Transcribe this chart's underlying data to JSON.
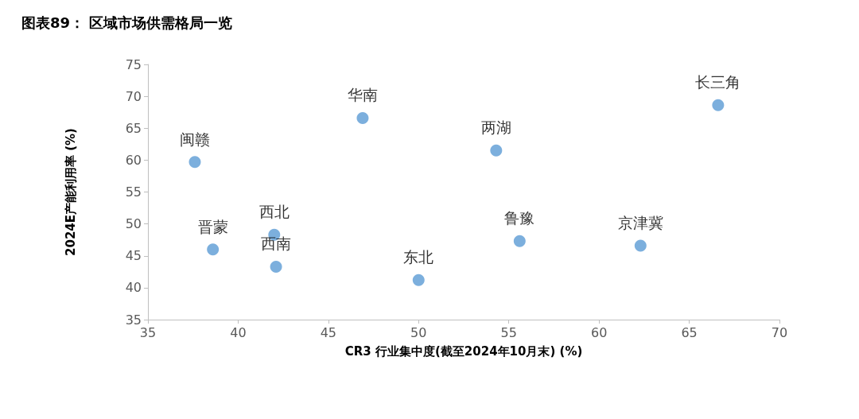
{
  "chart_data": {
    "type": "scatter",
    "title": "图表89： 区域市场供需格局一览",
    "xlabel": "CR3 行业集中度(截至2024年10月末) (%)",
    "ylabel": "2024E产能利用率 (%)",
    "series": [
      {
        "color": "#5b9bd5",
        "x": [
          37.6,
          46.9,
          54.3,
          66.6,
          42.0,
          38.6,
          42.1,
          50.0,
          55.6,
          62.3
        ],
        "values": [
          59.7,
          66.6,
          61.5,
          68.6,
          48.3,
          46.0,
          43.3,
          41.2,
          47.3,
          46.6
        ]
      }
    ],
    "annotations": [
      {
        "text": "闽赣",
        "x": 37.6,
        "y": 59.7
      },
      {
        "text": "华南",
        "x": 46.9,
        "y": 66.6
      },
      {
        "text": "两湖",
        "x": 54.3,
        "y": 61.5
      },
      {
        "text": "长三角",
        "x": 66.6,
        "y": 68.6
      },
      {
        "text": "西北",
        "x": 42.0,
        "y": 48.3
      },
      {
        "text": "晋蒙",
        "x": 38.6,
        "y": 46.0
      },
      {
        "text": "西南",
        "x": 42.1,
        "y": 43.3
      },
      {
        "text": "东北",
        "x": 50.0,
        "y": 41.2
      },
      {
        "text": "鲁豫",
        "x": 55.6,
        "y": 47.3
      },
      {
        "text": "京津冀",
        "x": 62.3,
        "y": 46.6
      }
    ],
    "xlim": [
      35,
      70
    ],
    "xticks": [
      35,
      40,
      45,
      50,
      55,
      60,
      65,
      70
    ],
    "ylim": [
      35,
      75
    ],
    "yticks": [
      35,
      40,
      45,
      50,
      55,
      60,
      65,
      70,
      75
    ],
    "grid": false,
    "marker": "circle"
  }
}
